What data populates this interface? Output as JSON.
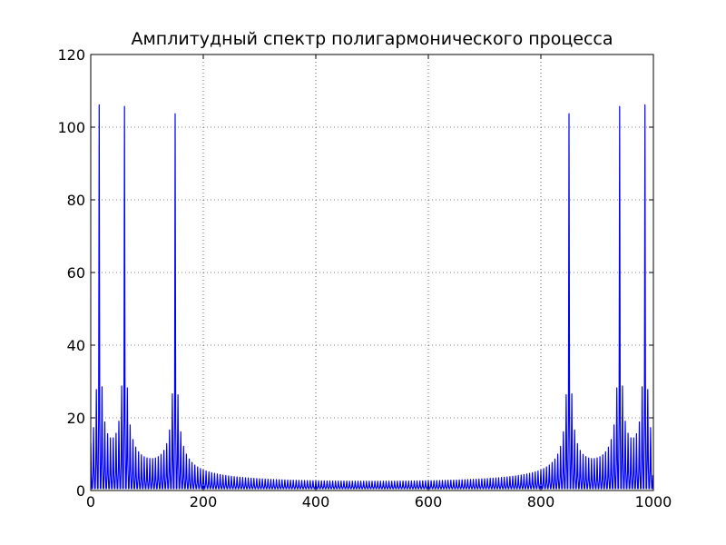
{
  "chart_data": {
    "type": "line",
    "title": "Амплитудный спектр полигармонического процесса",
    "xlabel": "",
    "ylabel": "",
    "xlim": [
      0,
      1000
    ],
    "ylim": [
      0,
      120
    ],
    "xticks": [
      0,
      200,
      400,
      600,
      800,
      1000
    ],
    "yticks": [
      0,
      20,
      40,
      60,
      80,
      100,
      120
    ],
    "grid": true,
    "grid_style": "dotted",
    "legend": "none",
    "series": [
      {
        "color": "#0000ff",
        "model": "spectral leakage peaks of a sampled polyharmonic signal, mirrored about x = 500",
        "n_points": 1000,
        "peaks": [
          {
            "x": 15,
            "amplitude": 101
          },
          {
            "x": 60,
            "amplitude": 100
          },
          {
            "x": 150,
            "amplitude": 100
          },
          {
            "x": 850,
            "amplitude": 100
          },
          {
            "x": 940,
            "amplitude": 100
          },
          {
            "x": 985,
            "amplitude": 101
          }
        ],
        "sidelobe_step": 5,
        "peak_width": 3
      }
    ]
  }
}
